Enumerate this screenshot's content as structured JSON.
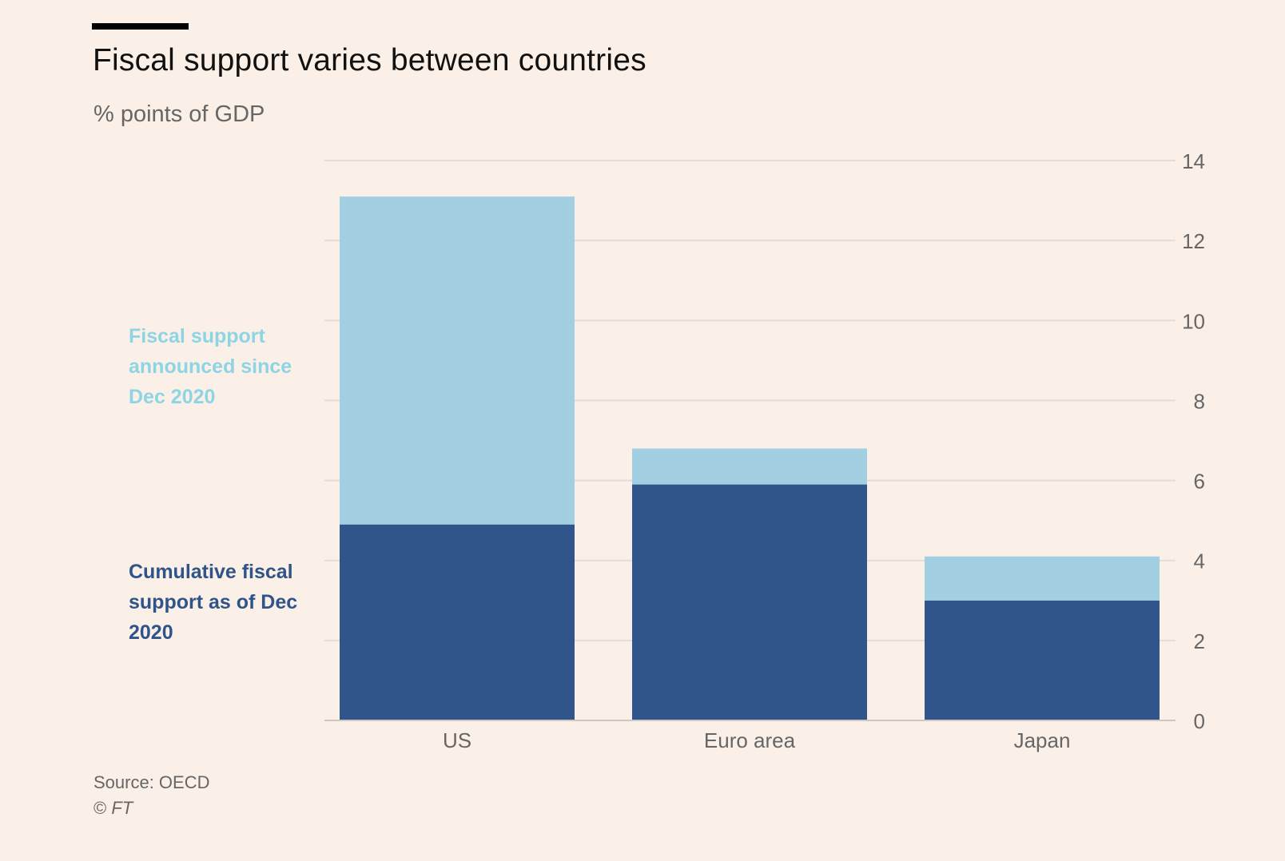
{
  "chart_data": {
    "type": "bar",
    "stacked": true,
    "title": "Fiscal support varies between countries",
    "subtitle": "% points of GDP",
    "xlabel": "",
    "ylabel": "% points of GDP",
    "categories": [
      "US",
      "Euro area",
      "Japan"
    ],
    "series": [
      {
        "name": "Cumulative fiscal support as of Dec 2020",
        "color": "#30558a",
        "values": [
          4.9,
          5.9,
          3.0
        ]
      },
      {
        "name": "Fiscal support announced since Dec 2020",
        "color": "#a3cfe3",
        "values": [
          8.2,
          0.9,
          1.1
        ]
      }
    ],
    "ylim": [
      0,
      14
    ],
    "yticks": [
      0,
      2,
      4,
      6,
      8,
      10,
      12,
      14
    ],
    "y_axis_side": "right",
    "grid": true,
    "legend_placement": "left (inline labels)"
  },
  "legend": {
    "light_label": "Fiscal support announced since Dec 2020",
    "dark_label": "Cumulative fiscal support as of Dec 2020",
    "light_color": "#8dd4e4",
    "dark_color": "#2f5489"
  },
  "footer": {
    "source": "Source: OECD",
    "copyright_symbol": "©",
    "copyright_org": "FT"
  },
  "colors": {
    "background": "#fbf0e7",
    "gridline": "#e4ddd6",
    "tick_text": "#666666"
  }
}
